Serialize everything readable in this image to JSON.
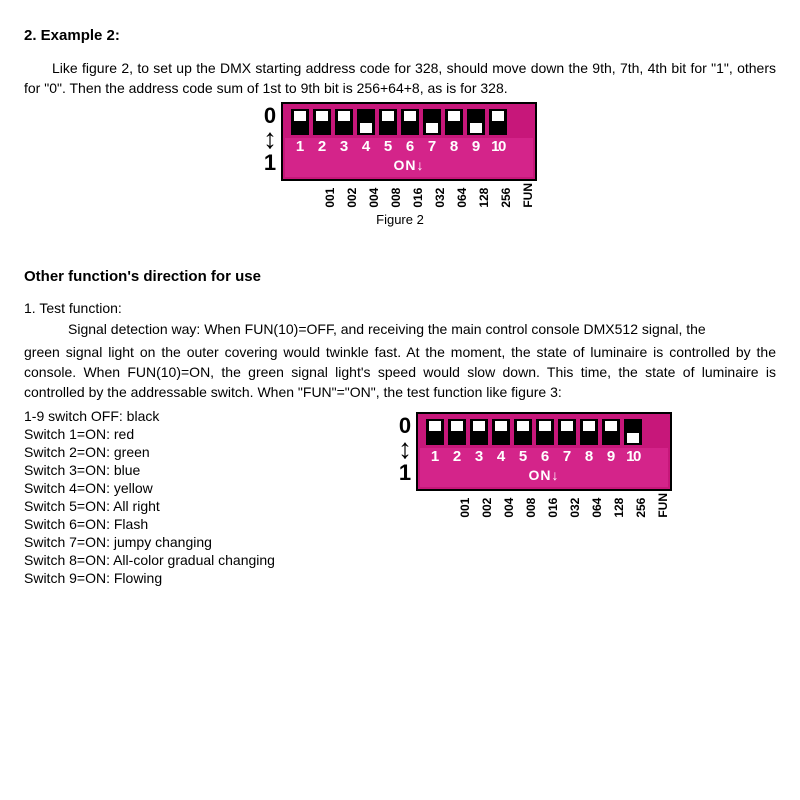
{
  "example": {
    "heading": "2. Example 2:",
    "para": "Like figure 2, to set up the DMX starting address code for 328, should move down the 9th, 7th, 4th bit for \"1\", others for \"0\". Then the address code sum of 1st to 9th bit is 256+64+8, as is for 328.",
    "caption": "Figure 2"
  },
  "dip": {
    "zero": "0",
    "one": "1",
    "on_label": "ON↓",
    "switch_numbers": [
      "1",
      "2",
      "3",
      "4",
      "5",
      "6",
      "7",
      "8",
      "9",
      "10"
    ],
    "bit_values": [
      "001",
      "002",
      "004",
      "008",
      "016",
      "032",
      "064",
      "128",
      "256",
      "FUN"
    ],
    "body_bg": "#c7177a",
    "lower_bg": "#d4248a",
    "fig2_states": [
      "up",
      "up",
      "up",
      "down",
      "up",
      "up",
      "down",
      "up",
      "down",
      "up"
    ],
    "fig3_states": [
      "up",
      "up",
      "up",
      "up",
      "up",
      "up",
      "up",
      "up",
      "up",
      "down"
    ]
  },
  "other": {
    "heading": "Other function's direction for use",
    "item1": "1.   Test function:",
    "p1": "Signal detection way: When FUN(10)=OFF, and receiving the main control console DMX512 signal, the",
    "p2": "green signal light on the outer covering would twinkle fast. At the moment, the state of luminaire is controlled by the console. When FUN(10)=ON, the green signal light's speed would slow down. This time, the state of luminaire is controlled by the addressable switch. When \"FUN\"=\"ON\", the test function like figure 3:",
    "switch_lines": [
      "1-9 switch OFF: black",
      "Switch 1=ON: red",
      "Switch 2=ON: green",
      "Switch 3=ON: blue",
      "Switch 4=ON: yellow",
      "Switch 5=ON: All right",
      "Switch 6=ON: Flash",
      "Switch 7=ON: jumpy changing",
      "Switch 8=ON: All-color gradual changing",
      "Switch 9=ON: Flowing"
    ]
  }
}
